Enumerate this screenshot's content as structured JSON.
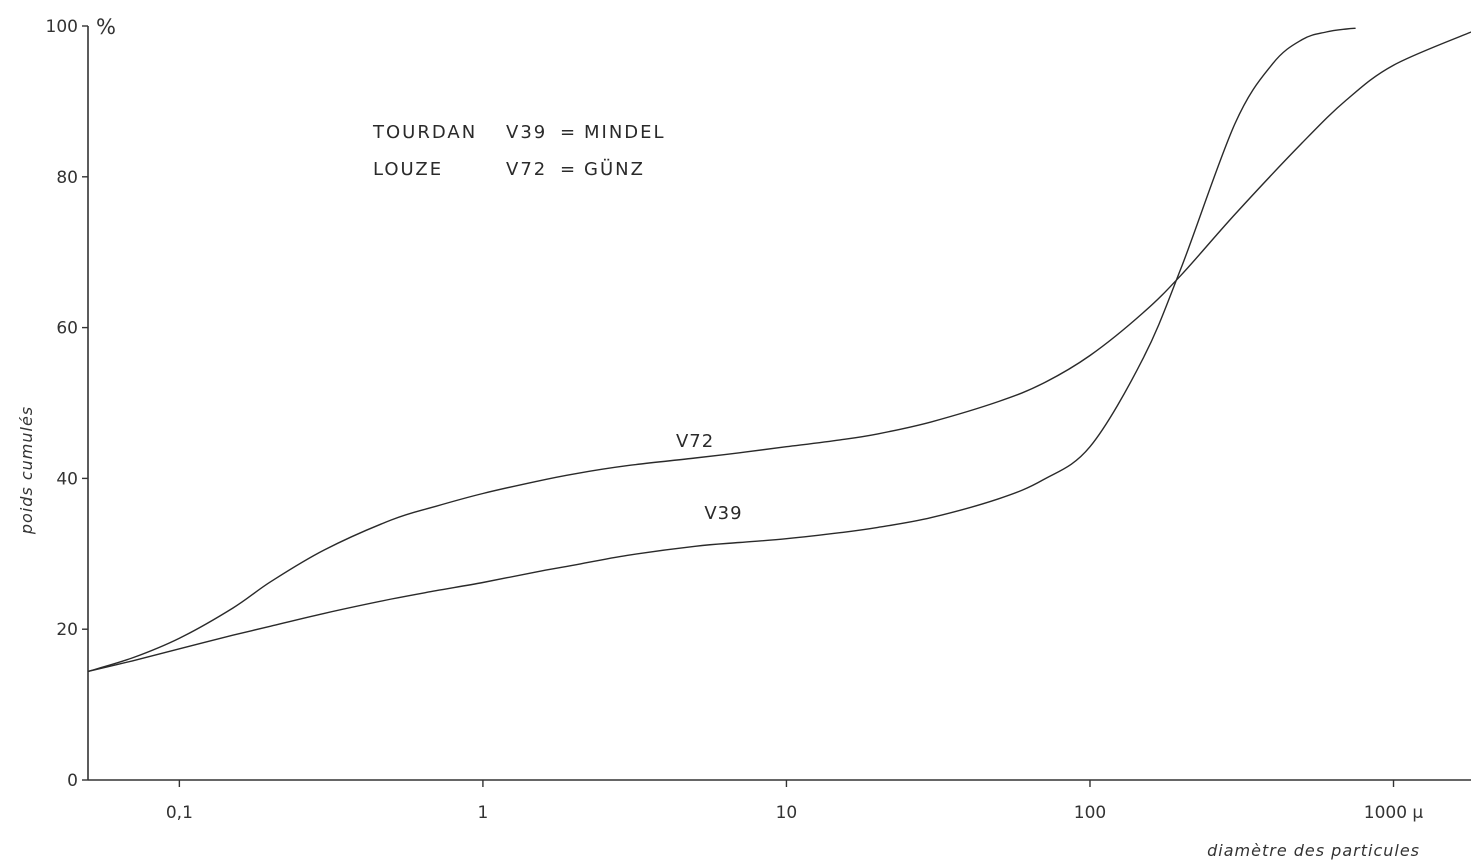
{
  "chart_data": {
    "type": "line",
    "title": "",
    "xlabel": "diamètre des particules",
    "ylabel": "poids cumulés",
    "x_scale": "log",
    "xlim": [
      0.05,
      1800
    ],
    "ylim": [
      0,
      100
    ],
    "x_ticks": [
      {
        "value": 0.1,
        "label": "0,1"
      },
      {
        "value": 1,
        "label": "1"
      },
      {
        "value": 10,
        "label": "10"
      },
      {
        "value": 100,
        "label": "100"
      },
      {
        "value": 1000,
        "label": "1000 µ"
      }
    ],
    "y_ticks": [
      {
        "value": 0,
        "label": "0"
      },
      {
        "value": 20,
        "label": "20"
      },
      {
        "value": 40,
        "label": "40"
      },
      {
        "value": 60,
        "label": "60"
      },
      {
        "value": 80,
        "label": "80"
      },
      {
        "value": 100,
        "label": "100"
      }
    ],
    "y_unit": "%",
    "grid": false,
    "legend": {
      "placement": "top-left",
      "entries": [
        {
          "site": "TOURDAN",
          "sample": "V39",
          "stage": "MINDEL"
        },
        {
          "site": "LOUZE",
          "sample": "V72",
          "stage": "GÜNZ"
        }
      ]
    },
    "series": [
      {
        "name": "V72",
        "x": [
          0.05,
          0.07,
          0.1,
          0.15,
          0.2,
          0.3,
          0.5,
          0.7,
          1,
          1.5,
          2,
          3,
          5,
          7,
          10,
          15,
          20,
          30,
          50,
          70,
          100,
          150,
          200,
          300,
          500,
          700,
          1000,
          1800
        ],
        "y": [
          14.4,
          16.2,
          18.8,
          22.8,
          26.3,
          30.5,
          34.5,
          36.3,
          38.0,
          39.6,
          40.6,
          41.7,
          42.7,
          43.4,
          44.2,
          45.1,
          45.9,
          47.5,
          50.2,
          52.6,
          56.3,
          62.0,
          67.0,
          75.0,
          84.5,
          90.2,
          94.8,
          99.2
        ]
      },
      {
        "name": "V39",
        "x": [
          0.05,
          0.07,
          0.1,
          0.15,
          0.2,
          0.3,
          0.5,
          0.7,
          1,
          1.5,
          2,
          3,
          5,
          7,
          10,
          15,
          20,
          30,
          50,
          70,
          100,
          150,
          200,
          300,
          400,
          500,
          600,
          700,
          750
        ],
        "y": [
          14.4,
          15.8,
          17.4,
          19.2,
          20.4,
          22.1,
          24.0,
          25.1,
          26.2,
          27.6,
          28.5,
          29.8,
          31.0,
          31.5,
          32.0,
          32.8,
          33.5,
          34.8,
          37.3,
          39.8,
          44.2,
          56.0,
          68.0,
          87.0,
          95.0,
          98.2,
          99.2,
          99.6,
          99.7
        ]
      }
    ]
  }
}
